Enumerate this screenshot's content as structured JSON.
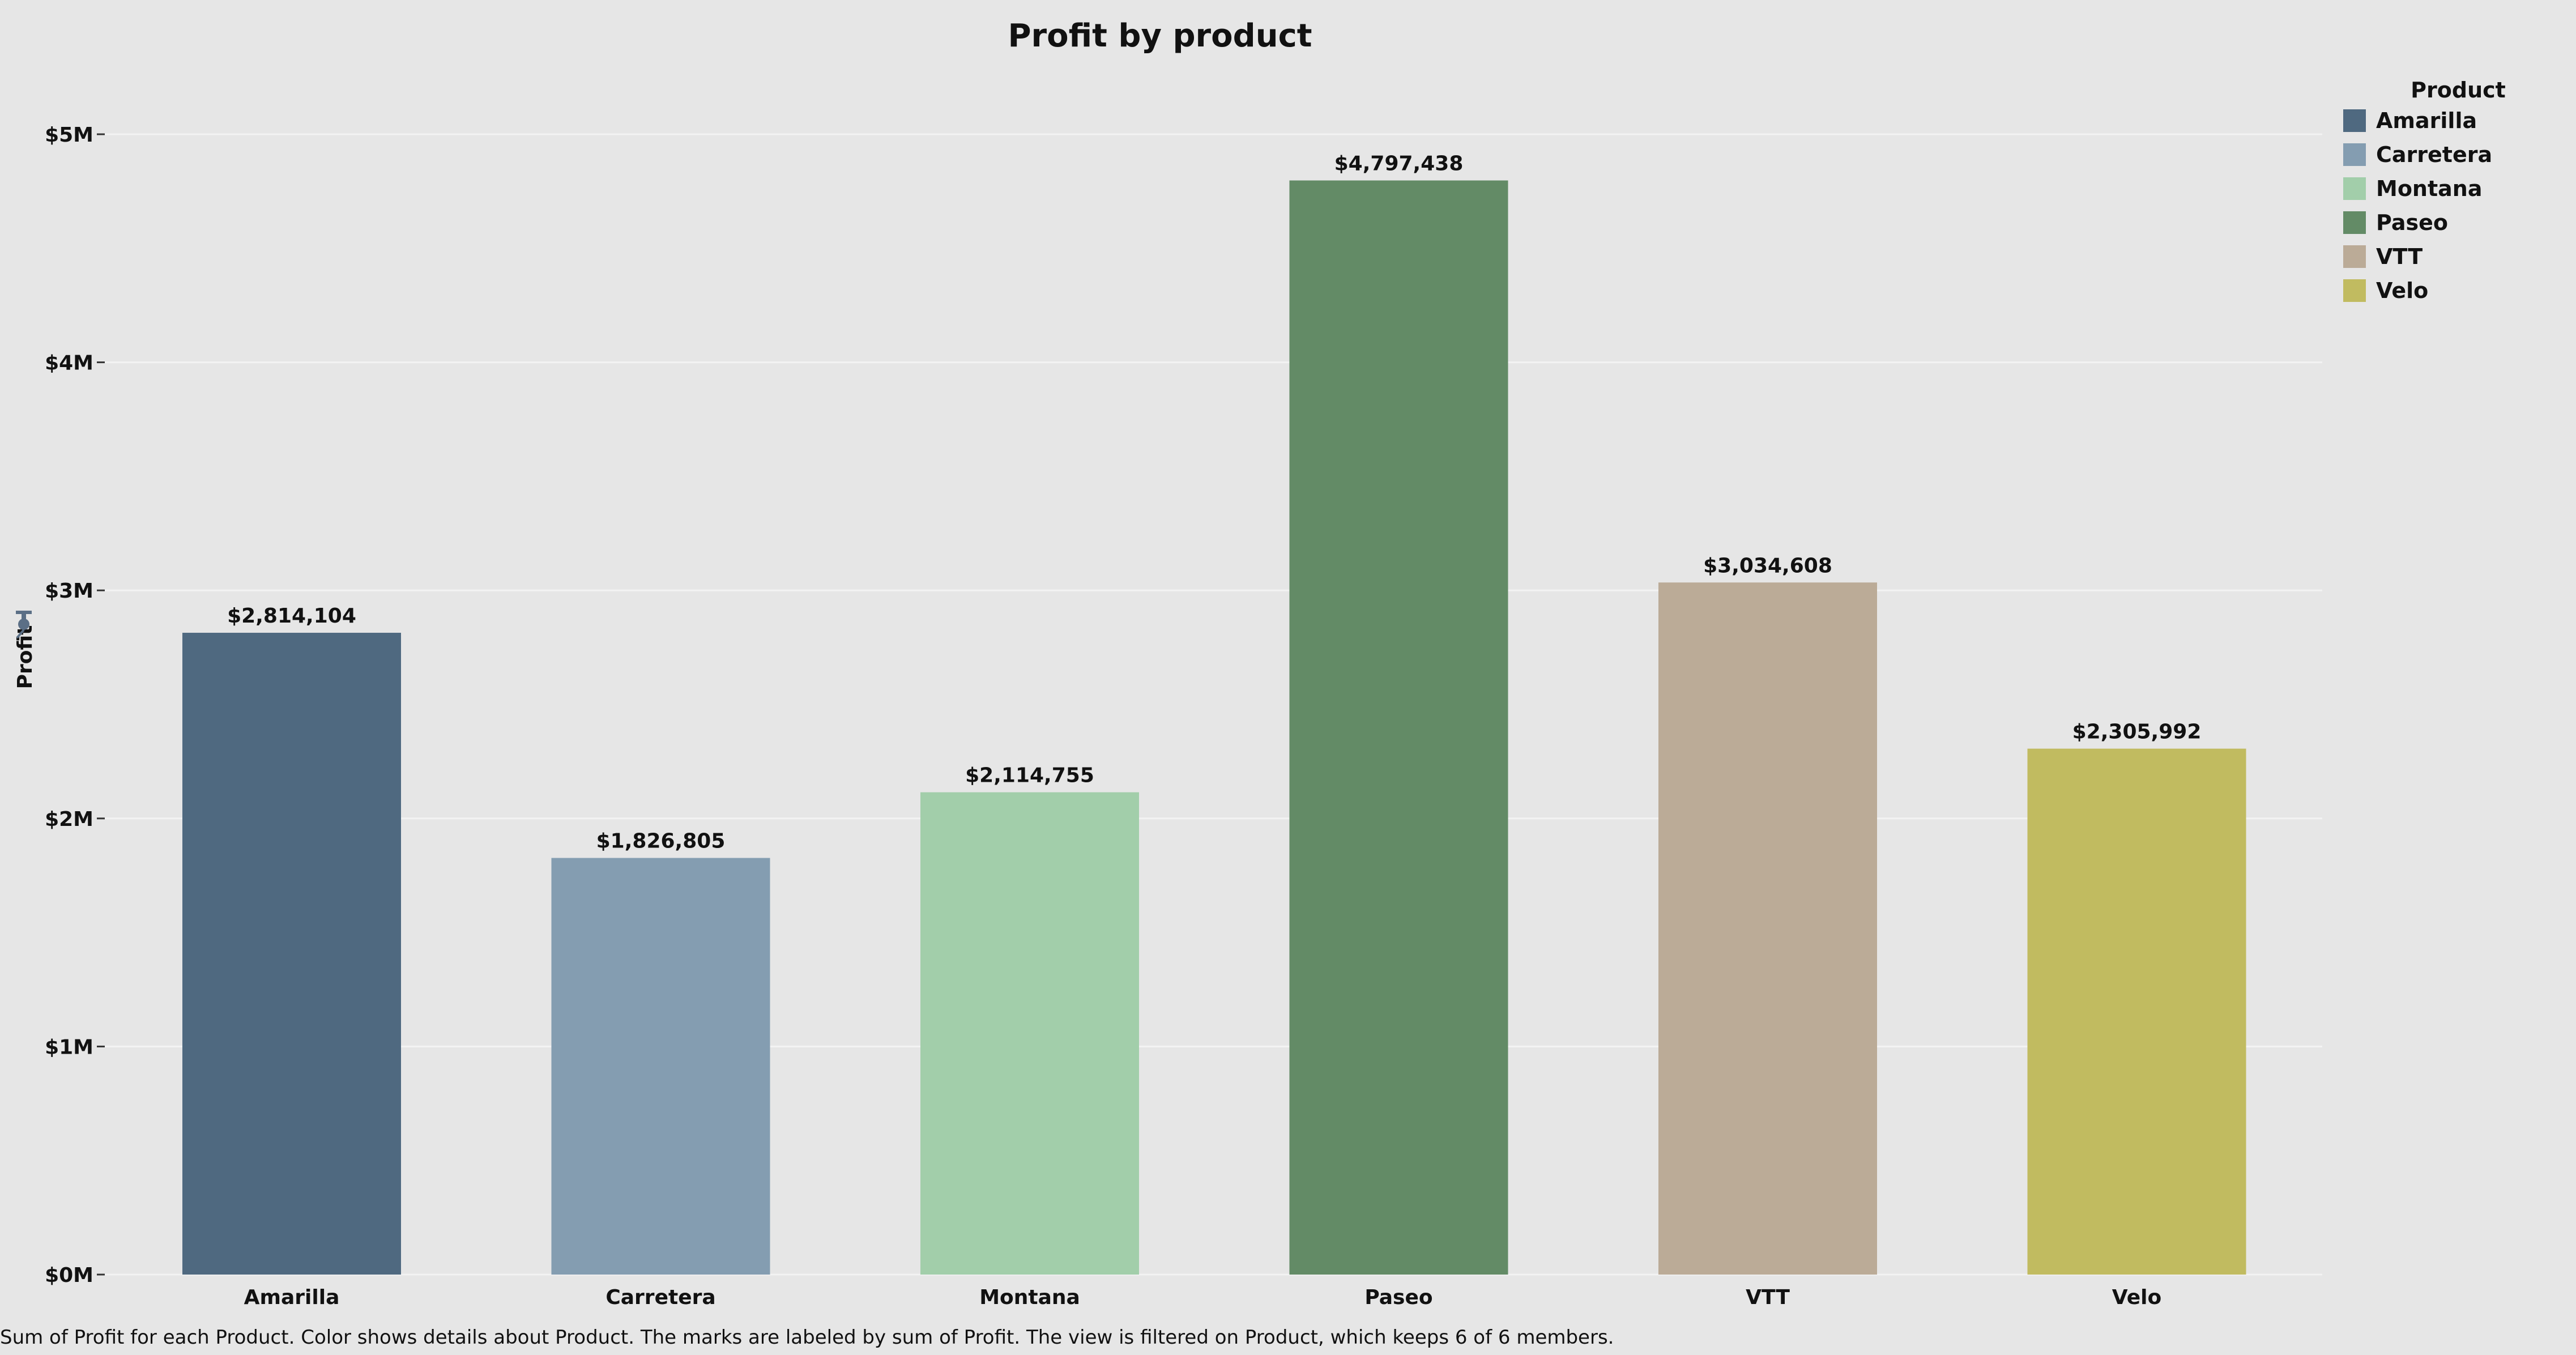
{
  "chart_data": {
    "type": "bar",
    "title": "Profit by product",
    "ylabel": "Profit",
    "xlabel": "",
    "categories": [
      "Amarilla",
      "Carretera",
      "Montana",
      "Paseo",
      "VTT",
      "Velo"
    ],
    "values": [
      2814104,
      1826805,
      2114755,
      4797438,
      3034608,
      2305992
    ],
    "data_labels": [
      "$2,814,104",
      "$1,826,805",
      "$2,114,755",
      "$4,797,438",
      "$3,034,608",
      "$2,305,992"
    ],
    "colors": [
      "#4f6980",
      "#849db1",
      "#a2ceaa",
      "#638b66",
      "#bfbb60",
      "#bfbb60"
    ],
    "ylim": [
      0,
      5600000
    ],
    "yticks": [
      0,
      1000000,
      2000000,
      3000000,
      4000000,
      5000000
    ],
    "ytick_labels": [
      "$0M",
      "$1M",
      "$2M",
      "$3M",
      "$4M",
      "$5M"
    ],
    "grid": true,
    "legend": {
      "title": "Product",
      "placement": "top-right",
      "entries": [
        "Amarilla",
        "Carretera",
        "Montana",
        "Paseo",
        "VTT",
        "Velo"
      ]
    },
    "caption": "Sum of Profit for each Product.  Color shows details about Product.  The marks are labeled by sum of Profit. The view is filtered on Product, which keeps 6 of 6 members."
  },
  "icons": {
    "axis_pin": "pin-icon"
  }
}
